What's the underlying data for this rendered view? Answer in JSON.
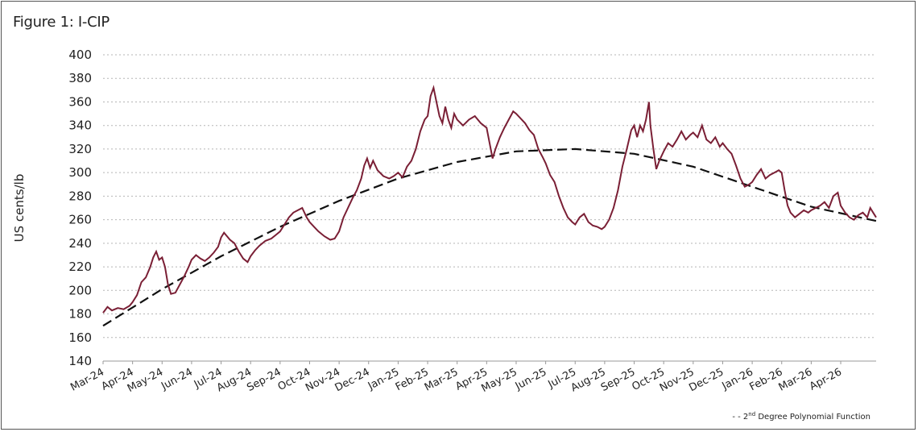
{
  "figure_title": "Figure 1: I-CIP",
  "colors": {
    "series": "#7a1f35",
    "trend": "#111111",
    "grid": "#b5b5b5"
  },
  "chart_data": {
    "type": "line",
    "title": "Figure 1: I-CIP",
    "xlabel": "",
    "ylabel": "US cents/lb",
    "ylim": [
      140,
      400
    ],
    "yticks": [
      140,
      160,
      180,
      200,
      220,
      240,
      260,
      280,
      300,
      320,
      340,
      360,
      380,
      400
    ],
    "grid": "horizontal dotted",
    "x_tick_labels": [
      "Mar-24",
      "Apr-24",
      "May-24",
      "Jun-24",
      "Jul-24",
      "Aug-24",
      "Sep-24",
      "Oct-24",
      "Nov-24",
      "Dec-24",
      "Jan-25",
      "Feb-25",
      "Mar-25",
      "Apr-25",
      "May-25",
      "Jun-25",
      "Jul-25",
      "Aug-25",
      "Sep-25",
      "Oct-25",
      "Nov-25",
      "Dec-25",
      "Jan-26",
      "Feb-26",
      "Mar-26",
      "Apr-26"
    ],
    "legend_placement": "bottom-right",
    "series": [
      {
        "values": [
          [
            0.0,
            181
          ],
          [
            0.15,
            186
          ],
          [
            0.3,
            183
          ],
          [
            0.5,
            185
          ],
          [
            0.7,
            184
          ],
          [
            0.9,
            187
          ],
          [
            1.0,
            190
          ],
          [
            1.15,
            196
          ],
          [
            1.3,
            207
          ],
          [
            1.45,
            211
          ],
          [
            1.6,
            220
          ],
          [
            1.7,
            228
          ],
          [
            1.8,
            233
          ],
          [
            1.9,
            226
          ],
          [
            2.0,
            228
          ],
          [
            2.1,
            220
          ],
          [
            2.2,
            205
          ],
          [
            2.3,
            197
          ],
          [
            2.45,
            198
          ],
          [
            2.6,
            205
          ],
          [
            2.75,
            212
          ],
          [
            2.9,
            220
          ],
          [
            3.0,
            226
          ],
          [
            3.15,
            230
          ],
          [
            3.3,
            227
          ],
          [
            3.45,
            225
          ],
          [
            3.6,
            228
          ],
          [
            3.75,
            232
          ],
          [
            3.9,
            237
          ],
          [
            4.0,
            245
          ],
          [
            4.1,
            249
          ],
          [
            4.2,
            246
          ],
          [
            4.3,
            243
          ],
          [
            4.45,
            240
          ],
          [
            4.6,
            233
          ],
          [
            4.75,
            227
          ],
          [
            4.9,
            224
          ],
          [
            5.0,
            229
          ],
          [
            5.15,
            234
          ],
          [
            5.3,
            238
          ],
          [
            5.5,
            242
          ],
          [
            5.7,
            244
          ],
          [
            5.85,
            247
          ],
          [
            6.0,
            250
          ],
          [
            6.15,
            256
          ],
          [
            6.3,
            262
          ],
          [
            6.45,
            266
          ],
          [
            6.6,
            268
          ],
          [
            6.75,
            270
          ],
          [
            6.9,
            262
          ],
          [
            7.0,
            258
          ],
          [
            7.15,
            254
          ],
          [
            7.3,
            250
          ],
          [
            7.5,
            246
          ],
          [
            7.7,
            243
          ],
          [
            7.85,
            244
          ],
          [
            8.0,
            250
          ],
          [
            8.15,
            262
          ],
          [
            8.3,
            270
          ],
          [
            8.45,
            278
          ],
          [
            8.6,
            285
          ],
          [
            8.75,
            295
          ],
          [
            8.85,
            306
          ],
          [
            8.95,
            312
          ],
          [
            9.05,
            304
          ],
          [
            9.15,
            310
          ],
          [
            9.3,
            302
          ],
          [
            9.5,
            297
          ],
          [
            9.7,
            295
          ],
          [
            9.85,
            297
          ],
          [
            10.0,
            300
          ],
          [
            10.15,
            296
          ],
          [
            10.3,
            305
          ],
          [
            10.45,
            310
          ],
          [
            10.6,
            320
          ],
          [
            10.75,
            335
          ],
          [
            10.9,
            345
          ],
          [
            11.0,
            348
          ],
          [
            11.1,
            365
          ],
          [
            11.2,
            372
          ],
          [
            11.3,
            360
          ],
          [
            11.4,
            348
          ],
          [
            11.5,
            342
          ],
          [
            11.6,
            356
          ],
          [
            11.7,
            345
          ],
          [
            11.8,
            338
          ],
          [
            11.9,
            350
          ],
          [
            12.0,
            345
          ],
          [
            12.2,
            340
          ],
          [
            12.4,
            345
          ],
          [
            12.6,
            348
          ],
          [
            12.8,
            342
          ],
          [
            13.0,
            338
          ],
          [
            13.1,
            325
          ],
          [
            13.2,
            312
          ],
          [
            13.3,
            320
          ],
          [
            13.45,
            330
          ],
          [
            13.6,
            338
          ],
          [
            13.75,
            345
          ],
          [
            13.9,
            352
          ],
          [
            14.0,
            350
          ],
          [
            14.15,
            346
          ],
          [
            14.3,
            342
          ],
          [
            14.45,
            336
          ],
          [
            14.6,
            332
          ],
          [
            14.75,
            320
          ],
          [
            14.9,
            313
          ],
          [
            15.0,
            308
          ],
          [
            15.15,
            298
          ],
          [
            15.3,
            292
          ],
          [
            15.45,
            280
          ],
          [
            15.6,
            270
          ],
          [
            15.75,
            262
          ],
          [
            15.9,
            258
          ],
          [
            16.0,
            256
          ],
          [
            16.15,
            262
          ],
          [
            16.3,
            265
          ],
          [
            16.45,
            258
          ],
          [
            16.6,
            255
          ],
          [
            16.75,
            254
          ],
          [
            16.9,
            252
          ],
          [
            17.0,
            254
          ],
          [
            17.15,
            260
          ],
          [
            17.3,
            270
          ],
          [
            17.45,
            285
          ],
          [
            17.6,
            305
          ],
          [
            17.75,
            320
          ],
          [
            17.9,
            336
          ],
          [
            18.0,
            340
          ],
          [
            18.1,
            330
          ],
          [
            18.2,
            340
          ],
          [
            18.3,
            335
          ],
          [
            18.4,
            345
          ],
          [
            18.5,
            360
          ],
          [
            18.55,
            340
          ],
          [
            18.65,
            320
          ],
          [
            18.75,
            303
          ],
          [
            18.85,
            310
          ],
          [
            19.0,
            318
          ],
          [
            19.15,
            325
          ],
          [
            19.3,
            322
          ],
          [
            19.45,
            328
          ],
          [
            19.6,
            335
          ],
          [
            19.75,
            328
          ],
          [
            19.9,
            332
          ],
          [
            20.0,
            334
          ],
          [
            20.15,
            330
          ],
          [
            20.3,
            340
          ],
          [
            20.45,
            328
          ],
          [
            20.6,
            325
          ],
          [
            20.75,
            330
          ],
          [
            20.9,
            322
          ],
          [
            21.0,
            325
          ],
          [
            21.15,
            320
          ],
          [
            21.3,
            316
          ],
          [
            21.45,
            306
          ],
          [
            21.6,
            295
          ],
          [
            21.75,
            288
          ],
          [
            21.9,
            290
          ],
          [
            22.0,
            292
          ],
          [
            22.15,
            298
          ],
          [
            22.3,
            303
          ],
          [
            22.45,
            295
          ],
          [
            22.6,
            298
          ],
          [
            22.75,
            300
          ],
          [
            22.9,
            302
          ],
          [
            23.0,
            300
          ],
          [
            23.1,
            285
          ],
          [
            23.2,
            272
          ],
          [
            23.3,
            266
          ],
          [
            23.45,
            262
          ],
          [
            23.6,
            265
          ],
          [
            23.75,
            268
          ],
          [
            23.9,
            266
          ],
          [
            24.0,
            268
          ],
          [
            24.15,
            270
          ],
          [
            24.3,
            272
          ],
          [
            24.45,
            275
          ],
          [
            24.6,
            270
          ],
          [
            24.75,
            280
          ],
          [
            24.9,
            283
          ],
          [
            25.0,
            272
          ],
          [
            25.15,
            266
          ],
          [
            25.3,
            262
          ],
          [
            25.45,
            260
          ],
          [
            25.6,
            264
          ],
          [
            25.75,
            266
          ],
          [
            25.9,
            262
          ],
          [
            26.0,
            270
          ],
          [
            26.1,
            266
          ],
          [
            26.2,
            262
          ]
        ]
      },
      {
        "name": "2nd Degree Polynomial  Function",
        "type": "polynomial-trend",
        "values": [
          [
            0,
            170
          ],
          [
            2,
            201
          ],
          [
            4,
            229
          ],
          [
            6,
            254
          ],
          [
            8,
            276
          ],
          [
            10,
            295
          ],
          [
            12,
            309
          ],
          [
            14,
            318
          ],
          [
            16,
            320
          ],
          [
            18,
            316
          ],
          [
            20,
            305
          ],
          [
            22,
            288
          ],
          [
            24,
            271
          ],
          [
            26,
            260
          ],
          [
            26.2,
            259
          ]
        ]
      }
    ]
  },
  "legend": {
    "prefix": "- - 2",
    "superscript": "nd",
    "text": " Degree Polynomial  Function"
  }
}
